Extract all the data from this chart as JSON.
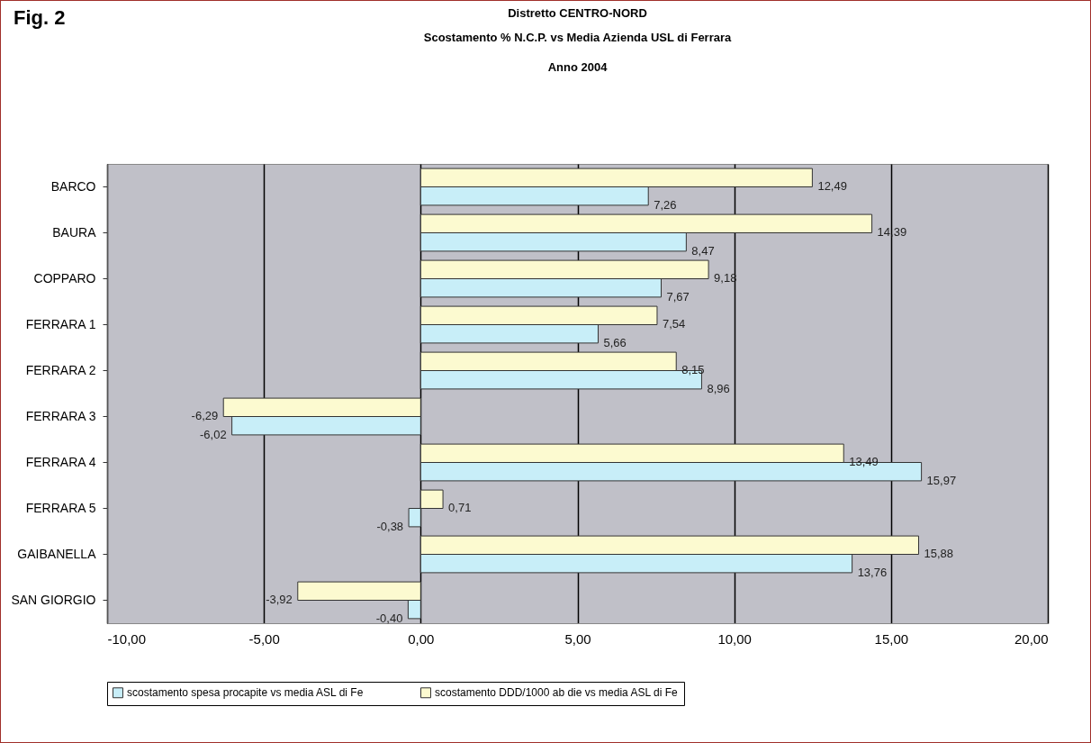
{
  "chart_data": {
    "type": "bar",
    "orientation": "horizontal",
    "title": "Distretto CENTRO-NORD",
    "subtitle": "Scostamento % N.C.P. vs Media Azienda USL di Ferrara\nAnno 2004",
    "annotations": [
      "Fig. 2"
    ],
    "categories": [
      "BARCO",
      "BAURA",
      "COPPARO",
      "FERRARA 1",
      "FERRARA 2",
      "FERRARA 3",
      "FERRARA 4",
      "FERRARA 5",
      "GAIBANELLA",
      "SAN GIORGIO"
    ],
    "series": [
      {
        "name": "scostamento spesa procapite vs media ASL di Fe",
        "color": "#c8eef8",
        "values": [
          7.26,
          8.47,
          7.67,
          5.66,
          8.96,
          -6.02,
          15.97,
          -0.38,
          13.76,
          -0.4
        ],
        "value_labels": [
          "7,26",
          "8,47",
          "7,67",
          "5,66",
          "8,96",
          "-6,02",
          "15,97",
          "-0,38",
          "13,76",
          "-0,40"
        ]
      },
      {
        "name": "scostamento DDD/1000 ab die vs media ASL di Fe",
        "color": "#fcfad0",
        "values": [
          12.49,
          14.39,
          9.18,
          7.54,
          8.15,
          -6.29,
          13.49,
          0.71,
          15.88,
          -3.92
        ],
        "value_labels": [
          "12,49",
          "14,39",
          "9,18",
          "7,54",
          "8,15",
          "-6,29",
          "13,49",
          "0,71",
          "15,88",
          "-3,92"
        ]
      }
    ],
    "xlim": [
      -10,
      20
    ],
    "xticks": [
      {
        "value": -10,
        "label": "-10,00"
      },
      {
        "value": -5,
        "label": "-5,00"
      },
      {
        "value": 0,
        "label": "0,00"
      },
      {
        "value": 5,
        "label": "5,00"
      },
      {
        "value": 10,
        "label": "10,00"
      },
      {
        "value": 15,
        "label": "15,00"
      },
      {
        "value": 20,
        "label": "20,00"
      }
    ],
    "grid": "x",
    "legend": "bottom"
  }
}
